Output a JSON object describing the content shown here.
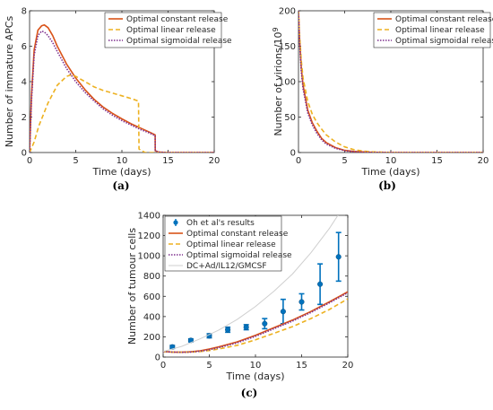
{
  "colors": {
    "constant": "#d95319",
    "linear": "#edb120",
    "sigmoidal": "#7e2f8e",
    "data": "#0072bd",
    "dc": "#cfcfcf"
  },
  "chart_data": [
    {
      "id": "a",
      "caption": "(a)",
      "type": "line",
      "xlabel": "Time (days)",
      "ylabel": "Number of immature APCs",
      "xlim": [
        0,
        20
      ],
      "ylim": [
        0,
        8
      ],
      "xticks": [
        0,
        5,
        10,
        15,
        20
      ],
      "yticks": [
        0,
        2,
        4,
        6,
        8
      ],
      "legend_position": "top-right",
      "series": [
        {
          "name": "Optimal constant release",
          "style": "constant",
          "x": [
            0,
            0.2,
            0.5,
            0.9,
            1.3,
            1.6,
            2,
            2.5,
            3,
            4,
            5,
            6,
            7,
            8,
            9,
            10,
            11,
            12,
            13,
            13.6,
            13.61,
            14,
            15,
            20
          ],
          "y": [
            0,
            3.2,
            5.8,
            6.9,
            7.15,
            7.2,
            7.05,
            6.6,
            6.0,
            5.0,
            4.2,
            3.55,
            3.0,
            2.55,
            2.2,
            1.9,
            1.62,
            1.38,
            1.15,
            1.0,
            0.1,
            0.02,
            0,
            0
          ]
        },
        {
          "name": "Optimal linear release",
          "style": "linear",
          "x": [
            0,
            0.5,
            1,
            2,
            3,
            4,
            4.5,
            5,
            6,
            7,
            8,
            9,
            10,
            11,
            11.8,
            11.85,
            12.5,
            20
          ],
          "y": [
            0,
            0.6,
            1.5,
            2.8,
            3.8,
            4.3,
            4.38,
            4.3,
            4.0,
            3.7,
            3.5,
            3.35,
            3.2,
            3.05,
            2.9,
            0.2,
            0,
            0
          ]
        },
        {
          "name": "Optimal sigmoidal release",
          "style": "sigmoidal",
          "x": [
            0,
            0.2,
            0.5,
            0.9,
            1.3,
            1.6,
            2,
            2.5,
            3,
            4,
            5,
            6,
            7,
            8,
            9,
            10,
            11,
            12,
            13,
            13.6,
            13.61,
            14,
            15,
            20
          ],
          "y": [
            0,
            2.9,
            5.5,
            6.6,
            6.85,
            6.8,
            6.6,
            6.2,
            5.7,
            4.75,
            4.0,
            3.4,
            2.9,
            2.45,
            2.1,
            1.8,
            1.55,
            1.3,
            1.1,
            0.95,
            0.1,
            0.02,
            0,
            0
          ]
        }
      ]
    },
    {
      "id": "b",
      "caption": "(b)",
      "type": "line",
      "xlabel": "Time (days)",
      "ylabel": "Number of virions/10",
      "ylabel_sup": "9",
      "xlim": [
        0,
        20
      ],
      "ylim": [
        0,
        200
      ],
      "xticks": [
        0,
        5,
        10,
        15,
        20
      ],
      "yticks": [
        0,
        50,
        100,
        150,
        200
      ],
      "legend_position": "top-right",
      "series": [
        {
          "name": "Optimal constant release",
          "style": "constant",
          "x": [
            0,
            0.1,
            0.3,
            0.5,
            1,
            1.5,
            2,
            2.5,
            3,
            4,
            5,
            6,
            8,
            10,
            20
          ],
          "y": [
            200,
            165,
            120,
            95,
            60,
            42,
            30,
            20,
            14,
            7,
            3,
            1.5,
            0.3,
            0,
            0
          ]
        },
        {
          "name": "Optimal linear release",
          "style": "linear",
          "x": [
            0,
            0.1,
            0.3,
            0.5,
            1,
            1.5,
            2,
            2.5,
            3,
            4,
            5,
            6,
            7,
            8,
            10,
            20
          ],
          "y": [
            200,
            170,
            130,
            105,
            72,
            54,
            42,
            33,
            25,
            15,
            8,
            4,
            2,
            1,
            0,
            0
          ]
        },
        {
          "name": "Optimal sigmoidal release",
          "style": "sigmoidal",
          "x": [
            0,
            0.1,
            0.3,
            0.5,
            1,
            1.5,
            2,
            2.5,
            3,
            4,
            5,
            6,
            8,
            10,
            20
          ],
          "y": [
            200,
            160,
            115,
            90,
            56,
            39,
            27,
            18,
            12,
            6,
            2.5,
            1,
            0.2,
            0,
            0
          ]
        }
      ]
    },
    {
      "id": "c",
      "caption": "(c)",
      "type": "line",
      "xlabel": "Time (days)",
      "ylabel": "Number of tumour cells",
      "xlim": [
        0,
        20
      ],
      "ylim": [
        0,
        1400
      ],
      "xticks": [
        0,
        5,
        10,
        15,
        20
      ],
      "yticks": [
        0,
        200,
        400,
        600,
        800,
        1000,
        1200,
        1400
      ],
      "legend_position": "top-left",
      "series": [
        {
          "name": "Oh et al's results",
          "style": "data",
          "kind": "errorbar",
          "x": [
            1,
            3,
            5,
            7,
            9,
            11,
            13,
            15,
            17,
            19
          ],
          "y": [
            100,
            165,
            210,
            270,
            295,
            330,
            450,
            545,
            720,
            990
          ],
          "err": [
            15,
            15,
            20,
            25,
            25,
            50,
            120,
            80,
            200,
            240
          ]
        },
        {
          "name": "Optimal constant release",
          "style": "constant",
          "x": [
            0,
            1,
            2,
            3,
            4,
            5,
            6,
            8,
            10,
            12,
            14,
            16,
            18,
            20
          ],
          "y": [
            55,
            50,
            48,
            52,
            62,
            80,
            100,
            150,
            215,
            290,
            365,
            450,
            545,
            645
          ]
        },
        {
          "name": "Optimal linear release",
          "style": "linear",
          "x": [
            0,
            1,
            2,
            3,
            4,
            5,
            6,
            8,
            10,
            12,
            14,
            16,
            18,
            20
          ],
          "y": [
            55,
            50,
            48,
            50,
            55,
            65,
            80,
            115,
            170,
            235,
            300,
            380,
            470,
            575
          ]
        },
        {
          "name": "Optimal sigmoidal release",
          "style": "sigmoidal",
          "x": [
            0,
            1,
            2,
            3,
            4,
            5,
            6,
            8,
            10,
            12,
            14,
            16,
            18,
            20
          ],
          "y": [
            55,
            50,
            47,
            50,
            58,
            72,
            92,
            140,
            205,
            280,
            355,
            440,
            535,
            635
          ]
        },
        {
          "name": "DC+Ad/IL12/GMCSF",
          "style": "dc",
          "x": [
            0,
            2,
            4,
            6,
            8,
            10,
            12,
            14,
            16,
            18,
            20
          ],
          "y": [
            55,
            105,
            180,
            265,
            370,
            500,
            650,
            820,
            1030,
            1270,
            1550
          ]
        }
      ]
    }
  ]
}
